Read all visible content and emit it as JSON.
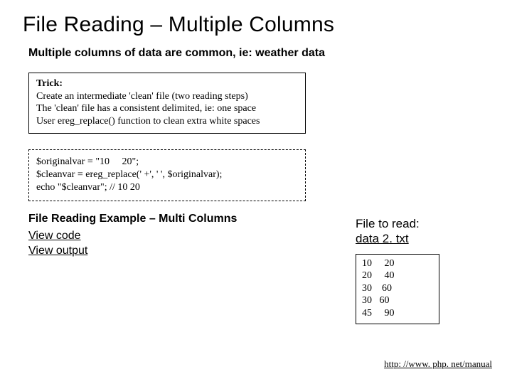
{
  "title": "File Reading – Multiple Columns",
  "subtitle": "Multiple columns of data are common, ie: weather data",
  "trick": {
    "label": "Trick:",
    "line1": "Create an intermediate 'clean' file (two reading steps)",
    "line2": "The 'clean' file has a consistent delimited, ie: one space",
    "line3": "User ereg_replace() function to clean extra white spaces"
  },
  "code": "$originalvar = \"10     20\";\n$cleanvar = ereg_replace(' +', ' ', $originalvar);\necho \"$cleanvar\"; // 10 20",
  "example": {
    "heading": "File Reading Example – Multi Columns",
    "view_code": "View code",
    "view_output": "View output"
  },
  "file_section": {
    "label": "File to read:",
    "filename": "data 2. txt",
    "data": "10     20\n20     40\n30    60\n30   60\n45     90"
  },
  "footer_url": "http: //www. php. net/manual"
}
